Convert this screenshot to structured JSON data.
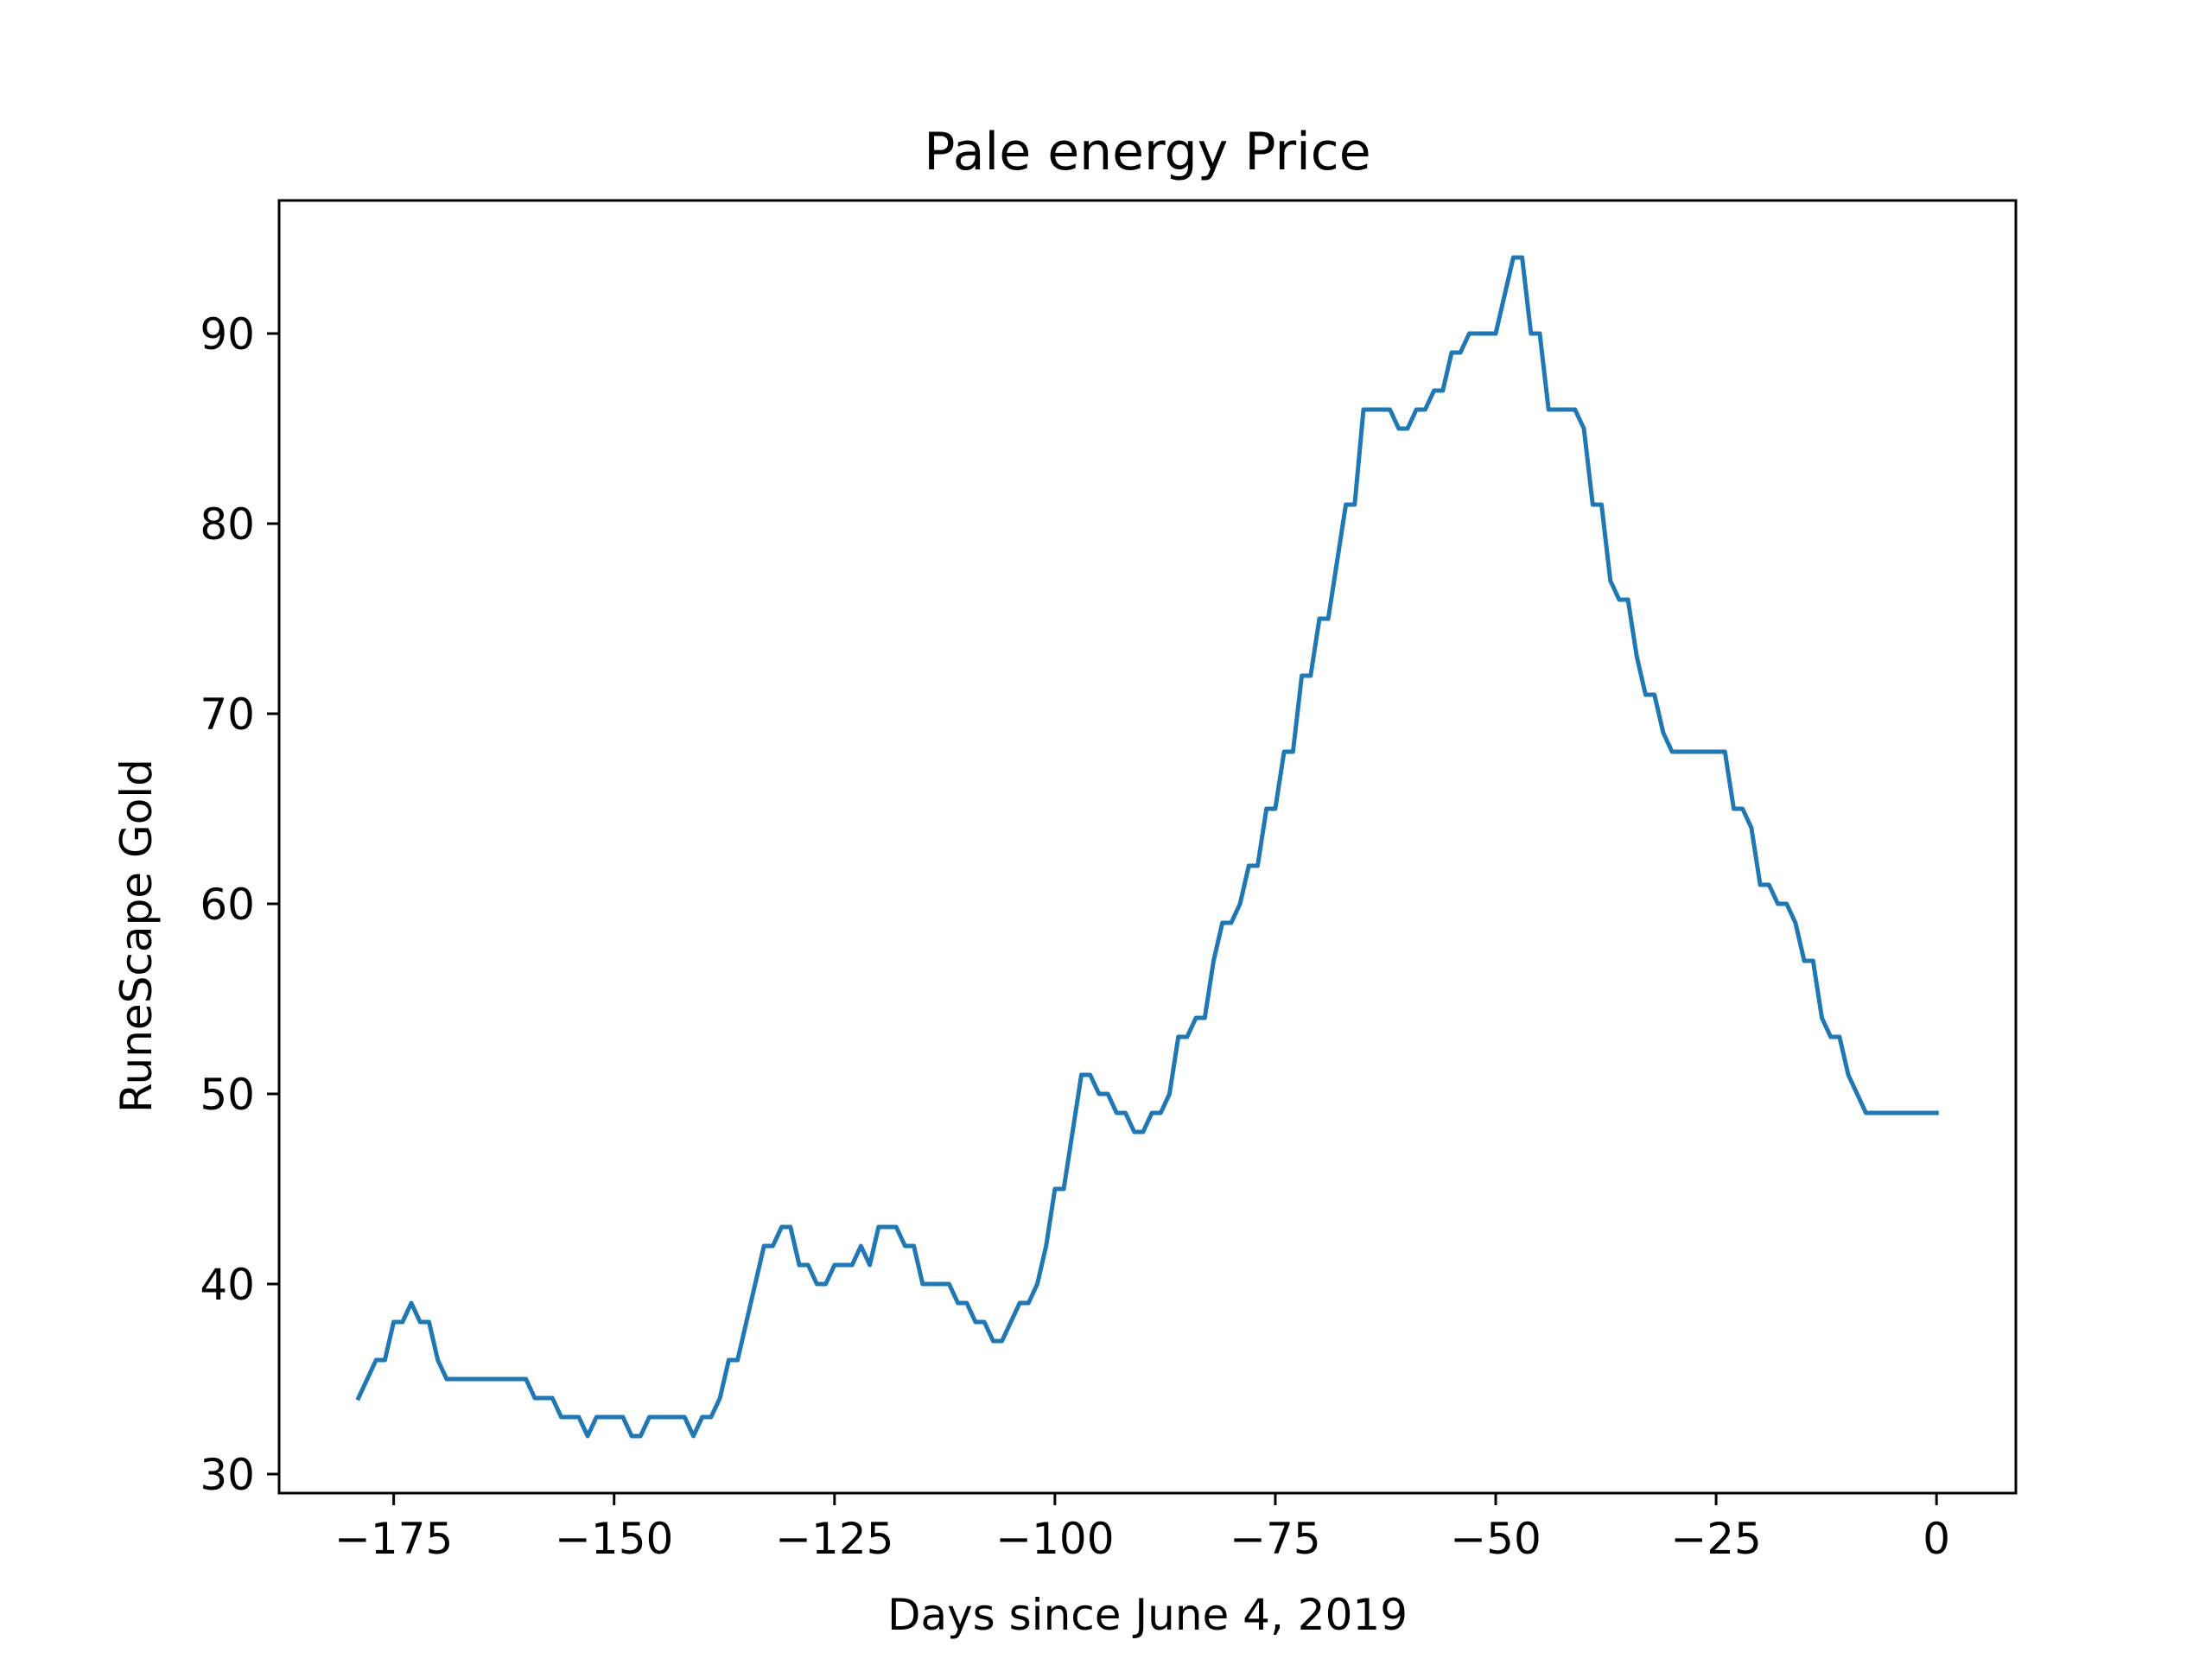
{
  "chart_data": {
    "type": "line",
    "title": "Pale energy Price",
    "xlabel": "Days since June 4, 2019",
    "ylabel": "RuneScape Gold",
    "xlim": [
      -188,
      9
    ],
    "ylim": [
      29,
      97
    ],
    "xticks": [
      -175,
      -150,
      -125,
      -100,
      -75,
      -50,
      -25,
      0
    ],
    "xtick_labels": [
      "−175",
      "−150",
      "−125",
      "−100",
      "−75",
      "−50",
      "−25",
      "0"
    ],
    "yticks": [
      30,
      40,
      50,
      60,
      70,
      80,
      90
    ],
    "ytick_labels": [
      "30",
      "40",
      "50",
      "60",
      "70",
      "80",
      "90"
    ],
    "grid": false,
    "series": [
      {
        "color": "#1f77b4",
        "points": [
          [
            -179,
            34
          ],
          [
            -177,
            36
          ],
          [
            -176,
            36
          ],
          [
            -175,
            38
          ],
          [
            -174,
            38
          ],
          [
            -173,
            39
          ],
          [
            -172,
            38
          ],
          [
            -171,
            38
          ],
          [
            -170,
            36
          ],
          [
            -169,
            35
          ],
          [
            -164,
            35
          ],
          [
            -160,
            35
          ],
          [
            -159,
            34
          ],
          [
            -157,
            34
          ],
          [
            -156,
            33
          ],
          [
            -154,
            33
          ],
          [
            -153,
            32
          ],
          [
            -152,
            33
          ],
          [
            -149,
            33
          ],
          [
            -148,
            32
          ],
          [
            -147,
            32
          ],
          [
            -146,
            33
          ],
          [
            -142,
            33
          ],
          [
            -141,
            32
          ],
          [
            -140,
            33
          ],
          [
            -139,
            33
          ],
          [
            -138,
            34
          ],
          [
            -137,
            36
          ],
          [
            -136,
            36
          ],
          [
            -133,
            42
          ],
          [
            -132,
            42
          ],
          [
            -131,
            43
          ],
          [
            -130,
            43
          ],
          [
            -129,
            41
          ],
          [
            -128,
            41
          ],
          [
            -127,
            40
          ],
          [
            -126,
            40
          ],
          [
            -125,
            41
          ],
          [
            -123,
            41
          ],
          [
            -122,
            42
          ],
          [
            -121,
            41
          ],
          [
            -120,
            43
          ],
          [
            -118,
            43
          ],
          [
            -117,
            42
          ],
          [
            -116,
            42
          ],
          [
            -115,
            40
          ],
          [
            -112,
            40
          ],
          [
            -111,
            39
          ],
          [
            -110,
            39
          ],
          [
            -109,
            38
          ],
          [
            -108,
            38
          ],
          [
            -107,
            37
          ],
          [
            -106,
            37
          ],
          [
            -104,
            39
          ],
          [
            -103,
            39
          ],
          [
            -102,
            40
          ],
          [
            -101,
            42
          ],
          [
            -100,
            45
          ],
          [
            -99,
            45
          ],
          [
            -97,
            51
          ],
          [
            -96,
            51
          ],
          [
            -95,
            50
          ],
          [
            -94,
            50
          ],
          [
            -93,
            49
          ],
          [
            -92,
            49
          ],
          [
            -91,
            48
          ],
          [
            -90,
            48
          ],
          [
            -89,
            49
          ],
          [
            -88,
            49
          ],
          [
            -87,
            50
          ],
          [
            -86,
            53
          ],
          [
            -85,
            53
          ],
          [
            -84,
            54
          ],
          [
            -83,
            54
          ],
          [
            -82,
            57
          ],
          [
            -81,
            59
          ],
          [
            -80,
            59
          ],
          [
            -79,
            60
          ],
          [
            -78,
            62
          ],
          [
            -77,
            62
          ],
          [
            -76,
            65
          ],
          [
            -75,
            65
          ],
          [
            -74,
            68
          ],
          [
            -73,
            68
          ],
          [
            -72,
            72
          ],
          [
            -71,
            72
          ],
          [
            -70,
            75
          ],
          [
            -69,
            75
          ],
          [
            -67,
            81
          ],
          [
            -66,
            81
          ],
          [
            -65,
            86
          ],
          [
            -62,
            86
          ],
          [
            -61,
            85
          ],
          [
            -60,
            85
          ],
          [
            -59,
            86
          ],
          [
            -58,
            86
          ],
          [
            -57,
            87
          ],
          [
            -56,
            87
          ],
          [
            -55,
            89
          ],
          [
            -54,
            89
          ],
          [
            -53,
            90
          ],
          [
            -50,
            90
          ],
          [
            -48,
            94
          ],
          [
            -47,
            94
          ],
          [
            -46,
            90
          ],
          [
            -45,
            90
          ],
          [
            -44,
            86
          ],
          [
            -41,
            86
          ],
          [
            -40,
            85
          ],
          [
            -39,
            81
          ],
          [
            -38,
            81
          ],
          [
            -37,
            77
          ],
          [
            -36,
            76
          ],
          [
            -35,
            76
          ],
          [
            -34,
            73
          ],
          [
            -33,
            71
          ],
          [
            -32,
            71
          ],
          [
            -31,
            69
          ],
          [
            -30,
            68
          ],
          [
            -24,
            68
          ],
          [
            -23,
            65
          ],
          [
            -22,
            65
          ],
          [
            -21,
            64
          ],
          [
            -20,
            61
          ],
          [
            -19,
            61
          ],
          [
            -18,
            60
          ],
          [
            -17,
            60
          ],
          [
            -16,
            59
          ],
          [
            -15,
            57
          ],
          [
            -14,
            57
          ],
          [
            -13,
            54
          ],
          [
            -12,
            53
          ],
          [
            -11,
            53
          ],
          [
            -10,
            51
          ],
          [
            -8,
            49
          ],
          [
            0,
            49
          ]
        ]
      }
    ]
  }
}
